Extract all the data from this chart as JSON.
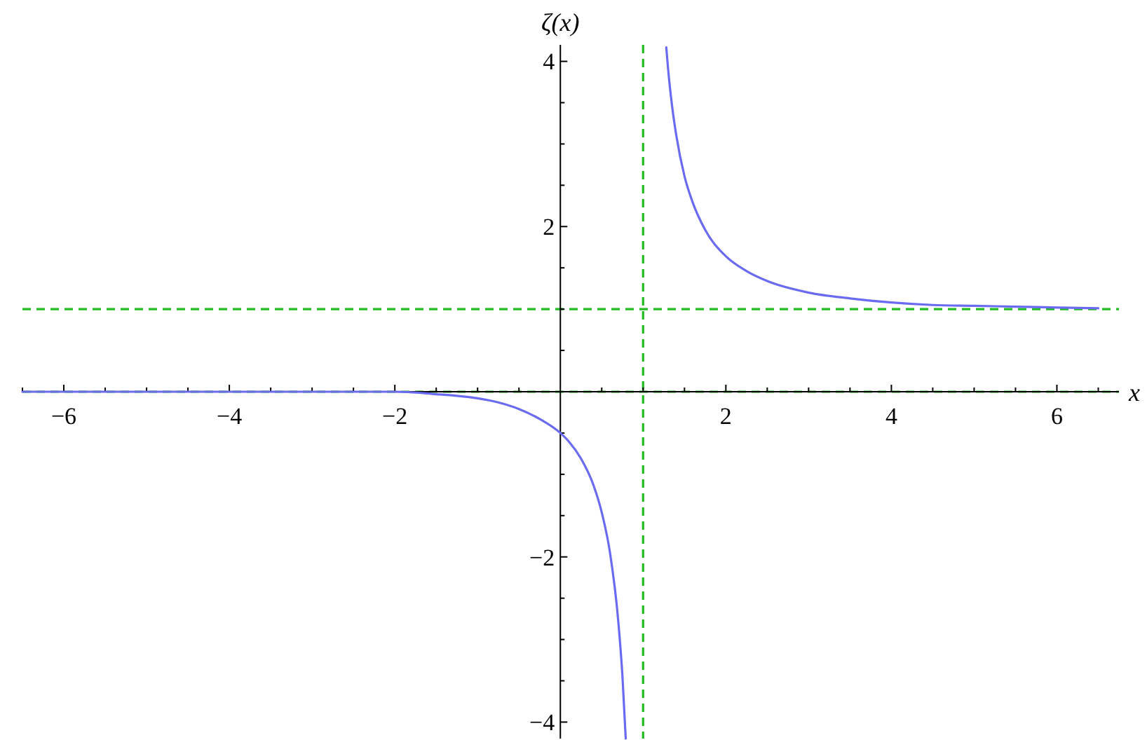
{
  "chart_data": {
    "type": "line",
    "xlabel": "x",
    "ylabel": "ζ(x)",
    "xlim": [
      -6.5,
      6.75
    ],
    "ylim": [
      -4.2,
      4.2
    ],
    "xticks": [
      {
        "value": -6.5,
        "label": null
      },
      {
        "value": -6,
        "label": "−6"
      },
      {
        "value": -5.5,
        "label": null
      },
      {
        "value": -5,
        "label": null
      },
      {
        "value": -4.5,
        "label": null
      },
      {
        "value": -4,
        "label": "−4"
      },
      {
        "value": -3.5,
        "label": null
      },
      {
        "value": -3,
        "label": null
      },
      {
        "value": -2.5,
        "label": null
      },
      {
        "value": -2,
        "label": "−2"
      },
      {
        "value": -1.5,
        "label": null
      },
      {
        "value": -1,
        "label": null
      },
      {
        "value": -0.5,
        "label": null
      },
      {
        "value": 0.5,
        "label": null
      },
      {
        "value": 1,
        "label": null
      },
      {
        "value": 1.5,
        "label": null
      },
      {
        "value": 2,
        "label": "2"
      },
      {
        "value": 2.5,
        "label": null
      },
      {
        "value": 3,
        "label": null
      },
      {
        "value": 3.5,
        "label": null
      },
      {
        "value": 4,
        "label": "4"
      },
      {
        "value": 4.5,
        "label": null
      },
      {
        "value": 5,
        "label": null
      },
      {
        "value": 5.5,
        "label": null
      },
      {
        "value": 6,
        "label": "6"
      },
      {
        "value": 6.5,
        "label": null
      }
    ],
    "yticks": [
      {
        "value": -4,
        "label": "−4"
      },
      {
        "value": -3.5,
        "label": null
      },
      {
        "value": -3,
        "label": null
      },
      {
        "value": -2.5,
        "label": null
      },
      {
        "value": -2,
        "label": "−2"
      },
      {
        "value": -1.5,
        "label": null
      },
      {
        "value": -1,
        "label": null
      },
      {
        "value": -0.5,
        "label": null
      },
      {
        "value": 0.5,
        "label": null
      },
      {
        "value": 1,
        "label": null
      },
      {
        "value": 1.5,
        "label": null
      },
      {
        "value": 2,
        "label": "2"
      },
      {
        "value": 2.5,
        "label": null
      },
      {
        "value": 3,
        "label": null
      },
      {
        "value": 3.5,
        "label": null
      },
      {
        "value": 4,
        "label": "4"
      }
    ],
    "series": [
      {
        "color": "#6b6bf2",
        "x": [
          -6.5,
          -5,
          -4,
          -3,
          -2,
          -1.5,
          -1.25,
          -1,
          -0.75,
          -0.5,
          -0.25,
          0,
          0.1,
          0.25,
          0.4,
          0.5,
          0.6,
          0.7,
          0.75,
          0.79
        ],
        "values": [
          0,
          0,
          0,
          0,
          0,
          -0.03,
          -0.05,
          -0.08,
          -0.13,
          -0.21,
          -0.33,
          -0.5,
          -0.6,
          -0.81,
          -1.13,
          -1.46,
          -1.95,
          -2.78,
          -3.44,
          -4.2
        ]
      },
      {
        "color": "#6b6bf2",
        "x": [
          1.28,
          1.3,
          1.35,
          1.4,
          1.5,
          1.6,
          1.75,
          2,
          2.25,
          2.5,
          3,
          3.5,
          4,
          4.5,
          5,
          5.5,
          6,
          6.5
        ],
        "values": [
          4.17,
          3.93,
          3.46,
          3.11,
          2.61,
          2.29,
          1.96,
          1.64,
          1.46,
          1.34,
          1.2,
          1.13,
          1.08,
          1.05,
          1.04,
          1.03,
          1.02,
          1.01
        ]
      }
    ],
    "ref_lines": [
      {
        "axis": "x",
        "value": 1,
        "color": "#22bb22",
        "line_style": "dashed"
      },
      {
        "axis": "y",
        "value": 1,
        "color": "#22bb22",
        "line_style": "dashed"
      },
      {
        "axis": "y",
        "value": 0,
        "color": "#22bb22",
        "line_style": "dashed"
      }
    ]
  }
}
